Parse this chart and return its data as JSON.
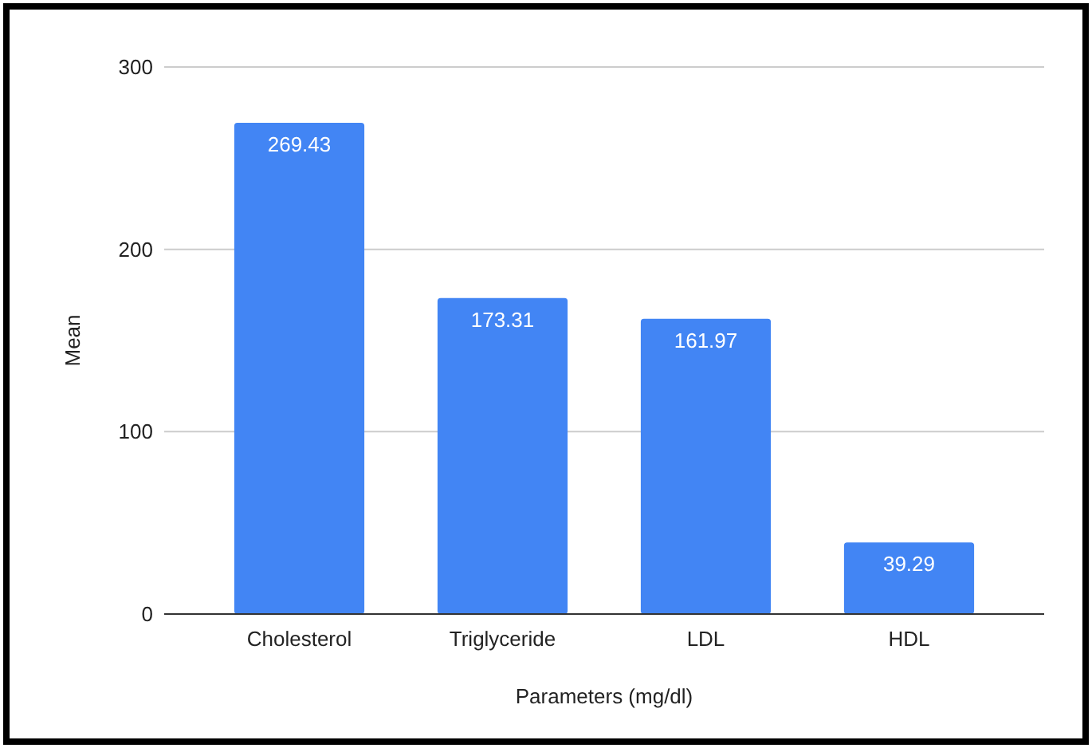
{
  "chart_data": {
    "type": "bar",
    "xlabel": "Parameters (mg/dl)",
    "ylabel": "Mean",
    "categories": [
      "Cholesterol",
      "Triglyceride",
      "LDL",
      "HDL"
    ],
    "values": [
      269.43,
      173.31,
      161.97,
      39.29
    ],
    "color": "#4285f4",
    "ylim": [
      0,
      300
    ],
    "yticks": [
      0,
      100,
      200,
      300
    ],
    "grid": "y",
    "data_labels": true
  }
}
